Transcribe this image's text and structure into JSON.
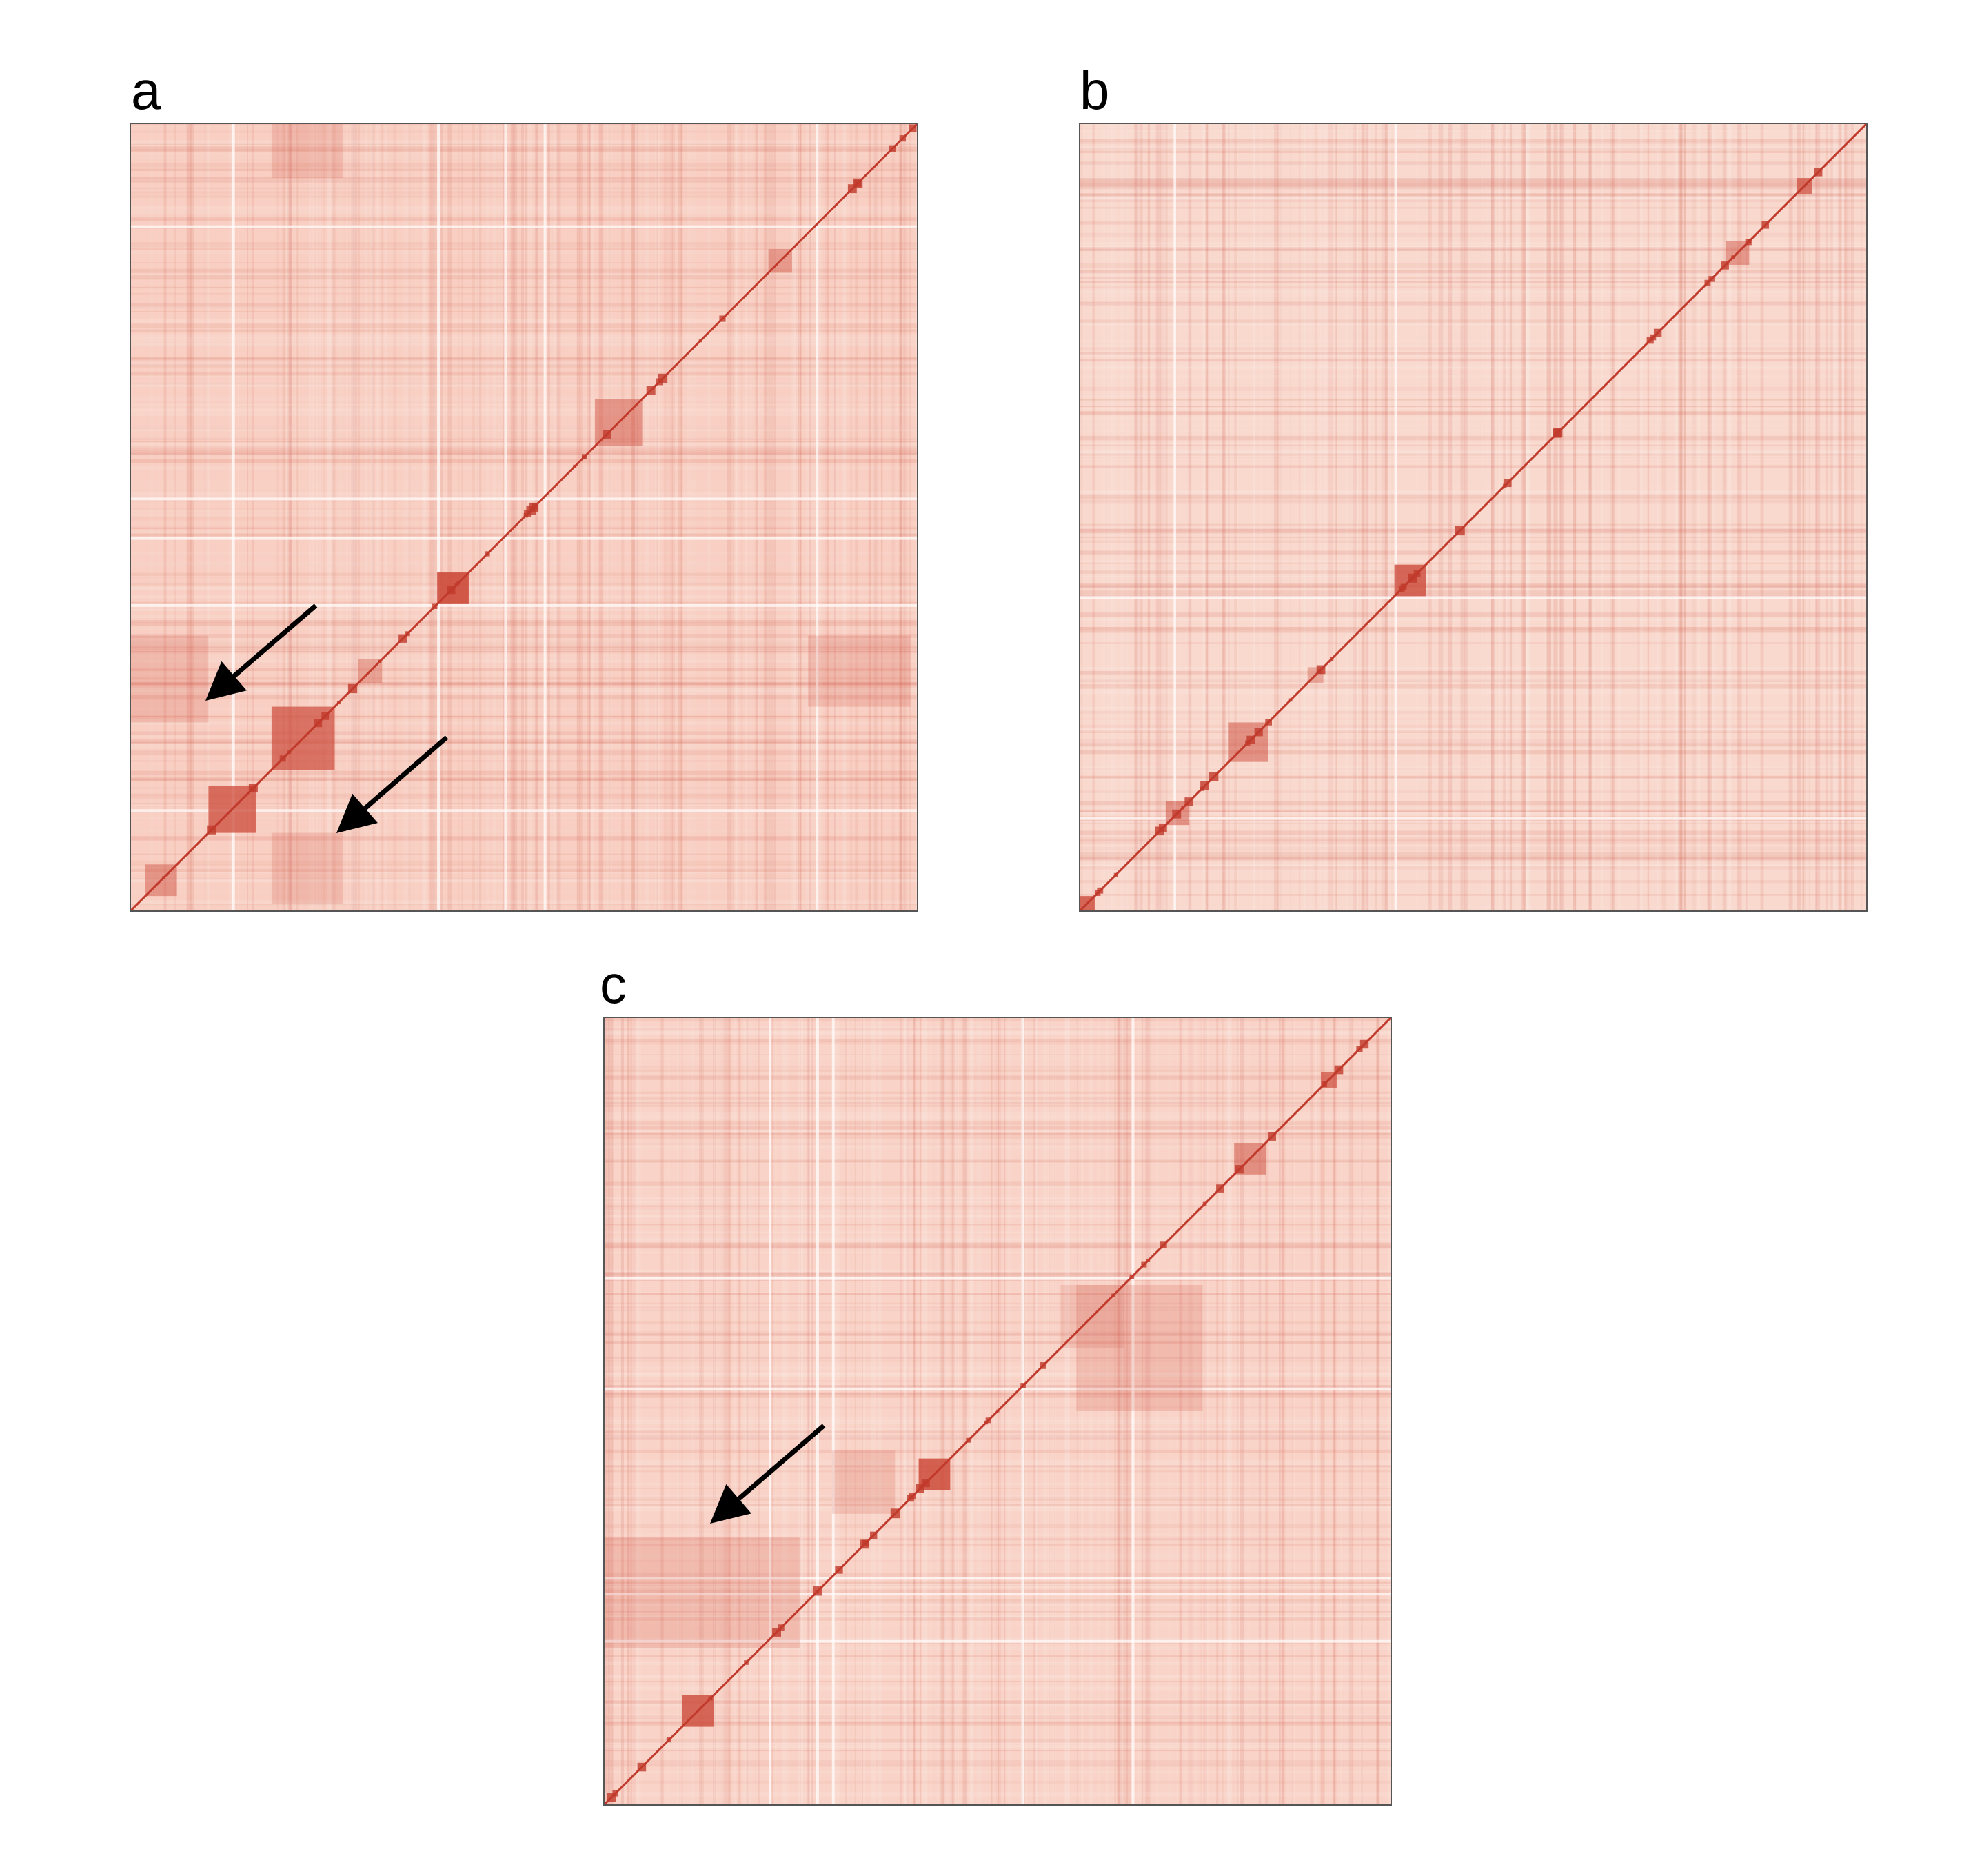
{
  "figure": {
    "panels": [
      {
        "label": "a"
      },
      {
        "label": "b"
      },
      {
        "label": "c"
      }
    ]
  },
  "chart_data": [
    {
      "type": "heatmap",
      "panel": "a",
      "description_free": true,
      "background_color": "#f8cfc2",
      "diagonal_color": "#c0392b",
      "dense_color": "#cc4a3a",
      "light_line_color": "#ffffff",
      "arrow_color": "#000000",
      "diagonal_blocks": [
        {
          "start": 0.39,
          "end": 0.43,
          "strength": 0.9
        },
        {
          "start": 0.1,
          "end": 0.16,
          "strength": 0.75
        },
        {
          "start": 0.18,
          "end": 0.26,
          "strength": 0.7
        },
        {
          "start": 0.59,
          "end": 0.65,
          "strength": 0.45
        },
        {
          "start": 0.81,
          "end": 0.84,
          "strength": 0.4
        },
        {
          "start": 0.02,
          "end": 0.06,
          "strength": 0.45
        },
        {
          "start": 0.29,
          "end": 0.32,
          "strength": 0.35
        }
      ],
      "arrows": 2
    },
    {
      "type": "heatmap",
      "panel": "b",
      "background_color": "#f9d8cd",
      "diagonal_color": "#c0392b",
      "dense_color": "#cc4a3a",
      "light_line_color": "#ffffff",
      "diagonal_blocks": [
        {
          "start": 0.4,
          "end": 0.44,
          "strength": 0.8
        },
        {
          "start": 0.19,
          "end": 0.24,
          "strength": 0.5
        },
        {
          "start": 0.11,
          "end": 0.14,
          "strength": 0.5
        },
        {
          "start": 0.82,
          "end": 0.85,
          "strength": 0.45
        },
        {
          "start": 0.29,
          "end": 0.31,
          "strength": 0.35
        },
        {
          "start": 0.0,
          "end": 0.02,
          "strength": 0.8
        },
        {
          "start": 0.91,
          "end": 0.93,
          "strength": 0.7
        }
      ],
      "arrows": 0
    },
    {
      "type": "heatmap",
      "panel": "c",
      "background_color": "#f9d3c7",
      "diagonal_color": "#c0392b",
      "dense_color": "#cc4a3a",
      "light_line_color": "#ffffff",
      "diagonal_blocks": [
        {
          "start": 0.4,
          "end": 0.44,
          "strength": 0.85
        },
        {
          "start": 0.1,
          "end": 0.14,
          "strength": 0.8
        },
        {
          "start": 0.8,
          "end": 0.84,
          "strength": 0.5
        },
        {
          "start": 0.91,
          "end": 0.93,
          "strength": 0.7
        },
        {
          "start": 0.58,
          "end": 0.66,
          "strength": 0.15
        }
      ],
      "arrows": 2
    }
  ]
}
